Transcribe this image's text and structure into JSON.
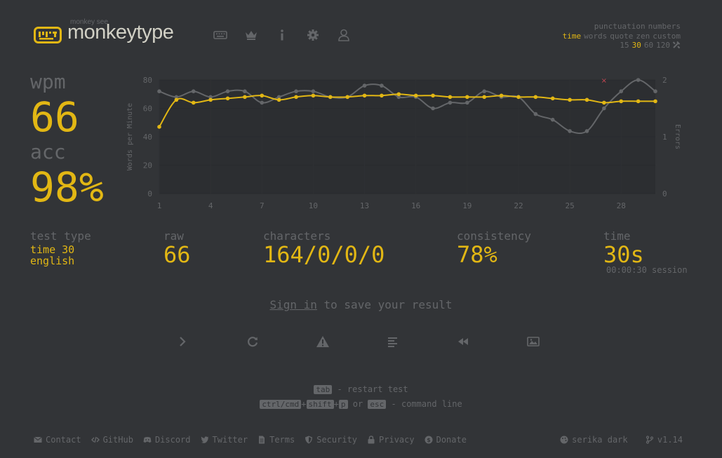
{
  "header": {
    "brand_small": "monkey see",
    "brand": "monkeytype",
    "config": {
      "row1": [
        "punctuation",
        "numbers"
      ],
      "row2": [
        {
          "label": "time",
          "active": true
        },
        {
          "label": "words",
          "active": false
        },
        {
          "label": "quote",
          "active": false
        },
        {
          "label": "zen",
          "active": false
        },
        {
          "label": "custom",
          "active": false
        }
      ],
      "row3": [
        {
          "label": "15",
          "active": false
        },
        {
          "label": "30",
          "active": true
        },
        {
          "label": "60",
          "active": false
        },
        {
          "label": "120",
          "active": false
        }
      ]
    }
  },
  "stats": {
    "wpm_label": "wpm",
    "wpm": "66",
    "acc_label": "acc",
    "acc": "98%",
    "test_type_label": "test type",
    "test_type_mode": "time 30",
    "test_type_lang": "english",
    "raw_label": "raw",
    "raw": "66",
    "characters_label": "characters",
    "characters": "164/0/0/0",
    "consistency_label": "consistency",
    "consistency": "78%",
    "time_label": "time",
    "time": "30s",
    "session": "00:00:30 session"
  },
  "signin": {
    "link": "Sign in",
    "rest": " to save your result"
  },
  "hints": {
    "restart_key": "tab",
    "restart_text": " - restart test",
    "cmd_keys": [
      "ctrl/cmd",
      "shift",
      "p"
    ],
    "or": " or ",
    "esc_key": "esc",
    "command_text": " - command line"
  },
  "footer": {
    "left": [
      {
        "icon": "envelope-icon",
        "label": "Contact"
      },
      {
        "icon": "code-icon",
        "label": "GitHub"
      },
      {
        "icon": "discord-icon",
        "label": "Discord"
      },
      {
        "icon": "twitter-icon",
        "label": "Twitter"
      },
      {
        "icon": "file-icon",
        "label": "Terms"
      },
      {
        "icon": "shield-icon",
        "label": "Security"
      },
      {
        "icon": "lock-icon",
        "label": "Privacy"
      },
      {
        "icon": "donate-icon",
        "label": "Donate"
      }
    ],
    "theme": "serika dark",
    "version": "v1.14"
  },
  "colors": {
    "bg": "#323437",
    "main": "#e2b714",
    "sub": "#646669",
    "text": "#d1d0c5",
    "error": "#ca4754"
  },
  "chart_data": {
    "type": "line",
    "xlabel": "",
    "ylabel": "Words per Minute",
    "y2label": "Errors",
    "xlim": [
      1,
      30
    ],
    "ylim": [
      0,
      80
    ],
    "y2lim": [
      0,
      2
    ],
    "xticks": [
      1,
      4,
      7,
      10,
      13,
      16,
      19,
      22,
      25,
      28
    ],
    "yticks": [
      0,
      20,
      40,
      60,
      80
    ],
    "y2ticks": [
      0,
      1,
      2
    ],
    "x": [
      1,
      2,
      3,
      4,
      5,
      6,
      7,
      8,
      9,
      10,
      11,
      12,
      13,
      14,
      15,
      16,
      17,
      18,
      19,
      20,
      21,
      22,
      23,
      24,
      25,
      26,
      27,
      28,
      29,
      30
    ],
    "series": [
      {
        "name": "wpm",
        "color": "#e2b714",
        "values": [
          47,
          66,
          64,
          66,
          67,
          68,
          69,
          66,
          68,
          69,
          68,
          68,
          69,
          69,
          70,
          69,
          69,
          68,
          68,
          68,
          69,
          68,
          68,
          67,
          66,
          66,
          64,
          65,
          65,
          65
        ]
      },
      {
        "name": "raw",
        "color": "#646669",
        "values": [
          72,
          68,
          72,
          68,
          72,
          72,
          64,
          68,
          72,
          72,
          68,
          68,
          76,
          76,
          68,
          68,
          60,
          64,
          64,
          72,
          68,
          68,
          56,
          52,
          44,
          44,
          60,
          72,
          80,
          72
        ]
      }
    ],
    "errors": [
      {
        "x": 27,
        "y": 2
      }
    ]
  }
}
